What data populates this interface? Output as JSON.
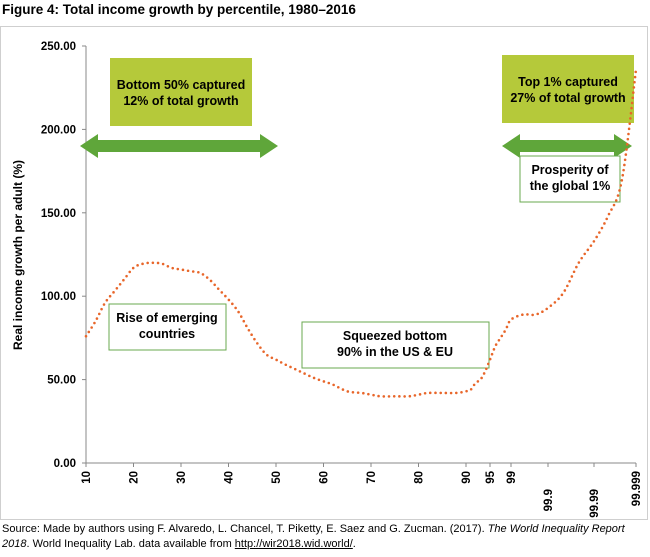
{
  "figure_title": "Figure 4: Total income growth by percentile, 1980–2016",
  "chart_data": {
    "type": "line",
    "title": "Figure 4: Total income growth by percentile, 1980–2016",
    "xlabel": "",
    "ylabel": "Real income growth per adult (%)",
    "ylim": [
      0,
      250
    ],
    "y_ticks": [
      "0.00",
      "50.00",
      "100.00",
      "150.00",
      "200.00",
      "250.00"
    ],
    "x_ticks": [
      "10",
      "20",
      "30",
      "40",
      "50",
      "60",
      "70",
      "80",
      "90",
      "95",
      "99",
      "99.9",
      "99.99",
      "99.999"
    ],
    "grid": false,
    "series": [
      {
        "name": "Total income growth",
        "color": "#e8662a",
        "style": "dotted",
        "x": [
          10,
          12,
          14,
          16,
          18,
          20,
          22,
          24,
          26,
          28,
          30,
          32,
          34,
          36,
          38,
          40,
          42,
          44,
          46,
          48,
          50,
          52,
          55,
          58,
          60,
          62,
          65,
          68,
          70,
          72,
          75,
          78,
          80,
          82,
          85,
          88,
          90,
          91,
          92,
          93,
          94,
          95,
          96,
          97,
          98,
          99,
          99.3,
          99.6,
          99.9,
          99.93,
          99.96,
          99.99,
          99.993,
          99.996,
          99.999
        ],
        "values": [
          76,
          85,
          96,
          103,
          110,
          117,
          119.5,
          120,
          119.5,
          117,
          116,
          115,
          114,
          110,
          104,
          98,
          91,
          81,
          72,
          65,
          62,
          59,
          55,
          51,
          49,
          47,
          43,
          42,
          41,
          40,
          40,
          40,
          41,
          42,
          42,
          42,
          43,
          44,
          48,
          50,
          55,
          62,
          70,
          75,
          80,
          86,
          89,
          89,
          93,
          102,
          120,
          133,
          148,
          170,
          236
        ]
      }
    ],
    "annotations": [
      {
        "text": "Bottom 50% captured\n12% of total growth"
      },
      {
        "text": "Top 1% captured\n27% of total growth"
      },
      {
        "text": "Prosperity of\nthe global 1%"
      },
      {
        "text": "Rise of emerging\ncountries"
      },
      {
        "text": "Squeezed bottom\n90% in the US & EU"
      }
    ]
  },
  "callouts": {
    "bottom50": {
      "line1": "Bottom 50% captured",
      "line2": "12% of total growth"
    },
    "top1": {
      "line1": "Top 1% captured",
      "line2": "27% of total growth"
    },
    "prosperity": {
      "line1": "Prosperity of",
      "line2": "the global 1%"
    },
    "emerging": {
      "line1": "Rise of emerging",
      "line2": "countries"
    },
    "squeezed": {
      "line1": "Squeezed bottom",
      "line2": "90% in the US & EU"
    }
  },
  "colors": {
    "line": "#e8662a",
    "callout_fill": "#b5c93a",
    "arrow": "#5fa63a",
    "box_border": "#6aa84f",
    "axis": "#888888"
  },
  "source": {
    "prefix": "Source: Made by authors using F. Alvaredo, L. Chancel, T. Piketty, E. Saez and G. Zucman. (2017). ",
    "italic": "The World Inequality Report 2018",
    "middle": ". World Inequality Lab. data available from ",
    "link": "http://wir2018.wid.world/",
    "suffix": "."
  }
}
